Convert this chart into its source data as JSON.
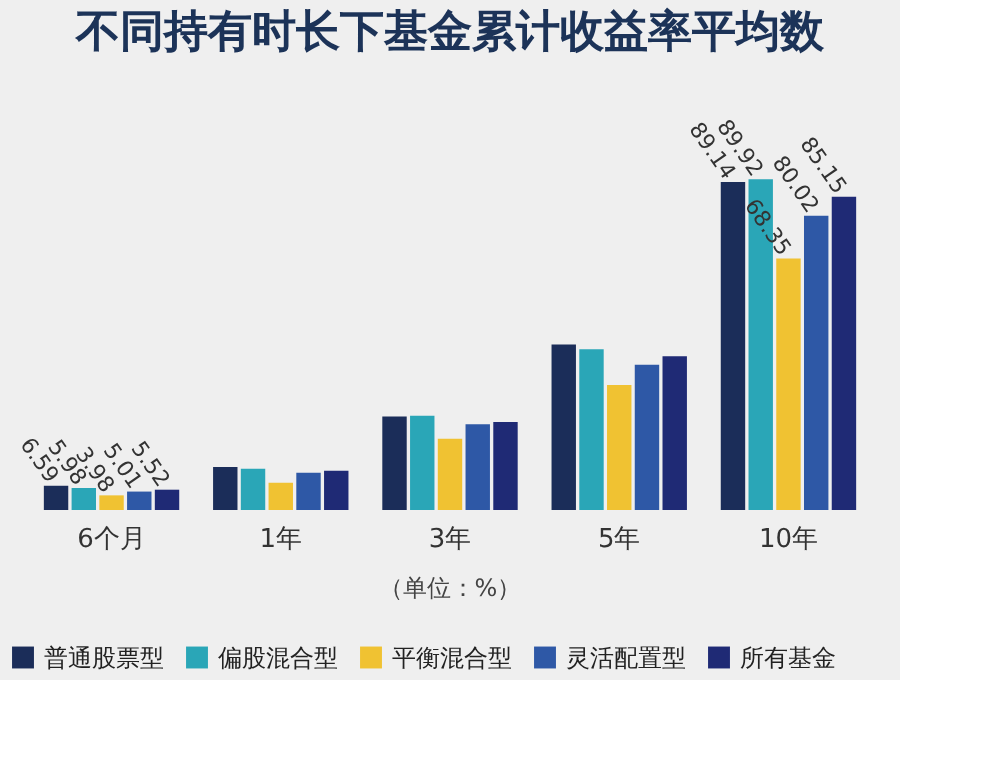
{
  "chart_data": {
    "type": "bar",
    "title": "不同持有时长下基金累计收益率平均数",
    "categories": [
      "6个月",
      "1年",
      "3年",
      "5年",
      "10年"
    ],
    "series": [
      {
        "name": "普通股票型",
        "color": "#1b2d59",
        "values": [
          6.59,
          11.7,
          25.4,
          45.0,
          89.14
        ],
        "value_labels": [
          "6.59",
          null,
          null,
          null,
          "89.14"
        ]
      },
      {
        "name": "偏股混合型",
        "color": "#2aa6b7",
        "values": [
          5.98,
          11.2,
          25.6,
          43.7,
          89.92
        ],
        "value_labels": [
          "5.98",
          null,
          null,
          null,
          "89.92"
        ]
      },
      {
        "name": "平衡混合型",
        "color": "#f0c232",
        "values": [
          3.98,
          7.4,
          19.4,
          34.0,
          68.35
        ],
        "value_labels": [
          "3.98",
          null,
          null,
          null,
          "68.35"
        ]
      },
      {
        "name": "灵活配置型",
        "color": "#2e58a6",
        "values": [
          5.01,
          10.1,
          23.3,
          39.5,
          80.02
        ],
        "value_labels": [
          "5.01",
          null,
          null,
          null,
          "80.02"
        ]
      },
      {
        "name": "所有基金",
        "color": "#1f2a75",
        "values": [
          5.52,
          10.7,
          23.9,
          41.8,
          85.15
        ],
        "value_labels": [
          "5.52",
          null,
          null,
          null,
          "85.15"
        ]
      }
    ],
    "legend": "bottom",
    "grid": false,
    "annotations": [
      "（单位：%）"
    ]
  }
}
